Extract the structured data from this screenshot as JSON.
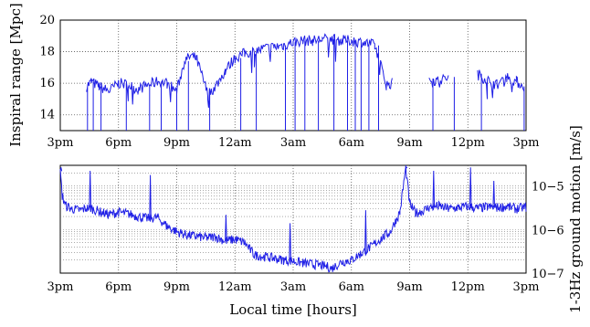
{
  "chart_data": [
    {
      "type": "line",
      "ylabel": "Inspiral range [Mpc]",
      "xlabel": "",
      "x_tick_labels": [
        "3pm",
        "6pm",
        "9pm",
        "12am",
        "3am",
        "6am",
        "9am",
        "12pm",
        "3pm"
      ],
      "x_range_hours": [
        0,
        24
      ],
      "ylim": [
        13,
        20
      ],
      "y_ticks": [
        14,
        16,
        18,
        20
      ],
      "grid": true,
      "line_color": "#1f1fe6",
      "series": [
        {
          "x_hours": [
            1.35,
            1.6,
            2.0,
            2.5,
            3.0,
            3.5,
            4.0,
            4.5,
            5.0,
            5.5,
            6.0,
            6.4,
            6.7,
            7.0,
            7.3,
            7.6,
            8.0,
            8.5,
            9.0,
            9.5,
            10.0,
            10.5,
            11.0,
            11.5,
            12.0,
            12.5,
            13.0,
            13.5,
            14.0,
            14.5,
            15.0,
            15.5,
            15.9,
            16.2,
            16.5,
            16.8,
            17.1,
            17.5,
            18.0,
            18.5,
            19.0,
            19.5,
            20.0,
            20.5,
            21.0,
            21.5,
            22.0,
            22.5,
            23.0,
            23.5,
            23.9
          ],
          "values": [
            15.8,
            16.1,
            15.8,
            15.5,
            16.0,
            15.9,
            15.6,
            15.9,
            16.1,
            16.0,
            15.5,
            17.4,
            17.7,
            17.6,
            16.5,
            15.3,
            15.8,
            16.8,
            17.6,
            17.9,
            18.0,
            18.2,
            18.3,
            18.4,
            18.6,
            18.7,
            18.7,
            18.8,
            18.8,
            18.7,
            18.7,
            18.6,
            18.5,
            18.4,
            17.2,
            15.9,
            16.0,
            null,
            null,
            null,
            16.3,
            16.1,
            16.4,
            null,
            null,
            16.6,
            16.2,
            15.9,
            16.4,
            16.1,
            15.8
          ]
        }
      ],
      "dropout_hours": [
        1.4,
        1.7,
        2.1,
        3.4,
        4.6,
        5.2,
        6.0,
        6.6,
        7.7,
        9.3,
        10.1,
        11.6,
        12.1,
        12.6,
        13.3,
        14.1,
        14.8,
        15.2,
        15.5,
        15.9,
        16.4,
        19.2,
        20.3,
        21.7,
        23.9
      ]
    },
    {
      "type": "line",
      "ylabel": "1-3Hz ground motion [m/s]",
      "xlabel": "Local time [hours]",
      "x_tick_labels": [
        "3pm",
        "6pm",
        "9pm",
        "12am",
        "3am",
        "6am",
        "9am",
        "12pm",
        "3pm"
      ],
      "x_range_hours": [
        0,
        24
      ],
      "yscale": "log",
      "ylim": [
        1e-07,
        3e-05
      ],
      "y_tick_labels": [
        "10−5",
        "10−6",
        "10−7"
      ],
      "y_tick_values": [
        1e-05,
        1e-06,
        1e-07
      ],
      "grid": true,
      "line_color": "#1f1fe6",
      "series": [
        {
          "x_hours": [
            0.0,
            0.1,
            0.3,
            0.6,
            1.0,
            1.5,
            2.0,
            2.5,
            3.0,
            3.5,
            4.0,
            4.5,
            5.0,
            5.5,
            6.0,
            6.5,
            7.0,
            7.5,
            8.0,
            8.5,
            9.0,
            9.5,
            10.0,
            10.5,
            11.0,
            11.5,
            12.0,
            12.5,
            13.0,
            13.5,
            14.0,
            14.5,
            15.0,
            15.5,
            16.0,
            16.5,
            17.0,
            17.5,
            17.8,
            18.0,
            18.3,
            18.6,
            19.0,
            19.5,
            20.0,
            20.5,
            21.0,
            21.5,
            22.0,
            22.5,
            23.0,
            23.5,
            24.0
          ],
          "values": [
            2.2e-05,
            6e-06,
            3.5e-06,
            3e-06,
            2.8e-06,
            3.2e-06,
            2.6e-06,
            2.2e-06,
            2.5e-06,
            2.3e-06,
            2e-06,
            1.8e-06,
            1.9e-06,
            1.2e-06,
            9e-07,
            7.5e-07,
            7e-07,
            6.5e-07,
            6.8e-07,
            5.5e-07,
            6e-07,
            5e-07,
            2.6e-07,
            2.4e-07,
            2.2e-07,
            2e-07,
            1.9e-07,
            1.7e-07,
            1.6e-07,
            1.5e-07,
            1.3e-07,
            1.8e-07,
            2e-07,
            2.8e-07,
            4e-07,
            6e-07,
            9e-07,
            2.5e-06,
            2.6e-05,
            4e-06,
            2.4e-06,
            2.6e-06,
            3.2e-06,
            3.5e-06,
            3e-06,
            3.2e-06,
            3.4e-06,
            3.1e-06,
            3.3e-06,
            3.2e-06,
            3.4e-06,
            3e-06,
            3.3e-06
          ]
        }
      ],
      "spike_hours": [
        0.0,
        1.5,
        4.6,
        8.5,
        11.8,
        15.7,
        17.8,
        19.2,
        21.1,
        22.3
      ]
    }
  ]
}
